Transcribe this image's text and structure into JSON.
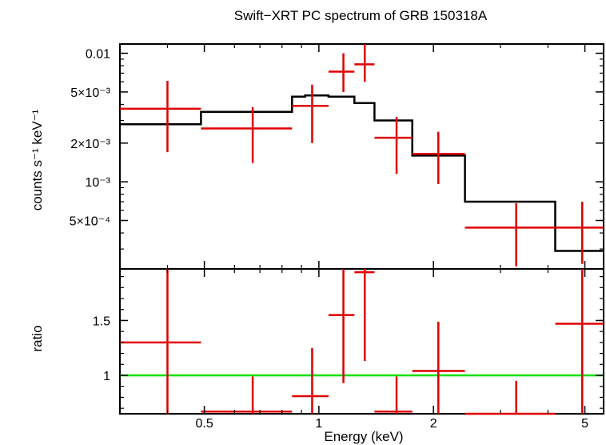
{
  "chart_data": [
    {
      "type": "scatter",
      "panel": "spectrum",
      "title": "Swift−XRT PC spectrum of GRB 150318A",
      "ylabel": "counts s⁻¹ keV⁻¹",
      "xlabel": "",
      "xscale": "log",
      "yscale": "log",
      "xlim": [
        0.3,
        5.6
      ],
      "ylim": [
        0.00021,
        0.0118
      ],
      "yticks": [
        {
          "value": 0.01,
          "label": "0.01"
        },
        {
          "value": 0.005,
          "label": "5×10⁻³"
        },
        {
          "value": 0.002,
          "label": "2×10⁻³"
        },
        {
          "value": 0.001,
          "label": "10⁻³"
        },
        {
          "value": 0.0005,
          "label": "5×10⁻⁴"
        }
      ],
      "series": [
        {
          "kind": "data",
          "color": "#e00000",
          "points": [
            {
              "x": 0.4,
              "xlo": 0.3,
              "xhi": 0.49,
              "y": 0.0037,
              "ylo": 0.0017,
              "yhi": 0.0061
            },
            {
              "x": 0.67,
              "xlo": 0.49,
              "xhi": 0.85,
              "y": 0.0026,
              "ylo": 0.0014,
              "yhi": 0.0038
            },
            {
              "x": 0.96,
              "xlo": 0.85,
              "xhi": 1.06,
              "y": 0.0039,
              "ylo": 0.002,
              "yhi": 0.0057
            },
            {
              "x": 1.16,
              "xlo": 1.06,
              "xhi": 1.24,
              "y": 0.0072,
              "ylo": 0.005,
              "yhi": 0.01
            },
            {
              "x": 1.32,
              "xlo": 1.24,
              "xhi": 1.4,
              "y": 0.0082,
              "ylo": 0.006,
              "yhi": 0.0118
            },
            {
              "x": 1.6,
              "xlo": 1.4,
              "xhi": 1.76,
              "y": 0.0022,
              "ylo": 0.00115,
              "yhi": 0.0032
            },
            {
              "x": 2.06,
              "xlo": 1.76,
              "xhi": 2.42,
              "y": 0.00165,
              "ylo": 0.00096,
              "yhi": 0.00245
            },
            {
              "x": 3.3,
              "xlo": 2.42,
              "xhi": 4.18,
              "y": 0.00044,
              "ylo": 0.00022,
              "yhi": 0.00068
            },
            {
              "x": 4.92,
              "xlo": 4.18,
              "xhi": 5.6,
              "y": 0.00044,
              "ylo": 0.00023,
              "yhi": 0.0007
            }
          ]
        },
        {
          "kind": "model",
          "color": "#000000",
          "steps": [
            {
              "xlo": 0.3,
              "xhi": 0.49,
              "y": 0.0028
            },
            {
              "xlo": 0.49,
              "xhi": 0.85,
              "y": 0.0035
            },
            {
              "xlo": 0.85,
              "xhi": 0.92,
              "y": 0.0046
            },
            {
              "xlo": 0.92,
              "xhi": 1.06,
              "y": 0.0047
            },
            {
              "xlo": 1.06,
              "xhi": 1.24,
              "y": 0.0046
            },
            {
              "xlo": 1.24,
              "xhi": 1.4,
              "y": 0.0041
            },
            {
              "xlo": 1.4,
              "xhi": 1.76,
              "y": 0.003
            },
            {
              "xlo": 1.76,
              "xhi": 2.42,
              "y": 0.0016
            },
            {
              "xlo": 2.42,
              "xhi": 4.18,
              "y": 0.0007
            },
            {
              "xlo": 4.18,
              "xhi": 5.6,
              "y": 0.00029
            }
          ]
        }
      ]
    },
    {
      "type": "scatter",
      "panel": "ratio",
      "xlabel": "Energy (keV)",
      "ylabel": "ratio",
      "xscale": "log",
      "yscale": "linear",
      "xlim": [
        0.3,
        5.6
      ],
      "ylim": [
        0.65,
        1.97
      ],
      "xticks": [
        {
          "value": 0.5,
          "label": "0.5"
        },
        {
          "value": 1,
          "label": "1"
        },
        {
          "value": 2,
          "label": "2"
        },
        {
          "value": 5,
          "label": "5"
        }
      ],
      "yticks": [
        {
          "value": 1,
          "label": "1"
        },
        {
          "value": 1.5,
          "label": "1.5"
        }
      ],
      "reference_line": {
        "y": 1,
        "color": "#00e000"
      },
      "series": [
        {
          "kind": "data",
          "color": "#e00000",
          "points": [
            {
              "x": 0.4,
              "xlo": 0.3,
              "xhi": 0.49,
              "y": 1.3,
              "ylo": 0.65,
              "yhi": 1.97
            },
            {
              "x": 0.67,
              "xlo": 0.49,
              "xhi": 0.85,
              "y": 0.67,
              "ylo": 0.65,
              "yhi": 0.99
            },
            {
              "x": 0.96,
              "xlo": 0.85,
              "xhi": 1.06,
              "y": 0.81,
              "ylo": 0.65,
              "yhi": 1.25
            },
            {
              "x": 1.16,
              "xlo": 1.06,
              "xhi": 1.24,
              "y": 1.55,
              "ylo": 0.93,
              "yhi": 1.97
            },
            {
              "x": 1.32,
              "xlo": 1.24,
              "xhi": 1.4,
              "y": 1.94,
              "ylo": 1.13,
              "yhi": 1.97
            },
            {
              "x": 1.6,
              "xlo": 1.4,
              "xhi": 1.76,
              "y": 0.67,
              "ylo": 0.65,
              "yhi": 0.99
            },
            {
              "x": 2.06,
              "xlo": 1.76,
              "xhi": 2.42,
              "y": 1.04,
              "ylo": 0.65,
              "yhi": 1.49
            },
            {
              "x": 3.3,
              "xlo": 2.42,
              "xhi": 4.18,
              "y": 0.65,
              "ylo": 0.65,
              "yhi": 0.95
            },
            {
              "x": 4.92,
              "xlo": 4.18,
              "xhi": 5.6,
              "y": 1.47,
              "ylo": 0.65,
              "yhi": 1.97
            }
          ]
        }
      ]
    }
  ]
}
